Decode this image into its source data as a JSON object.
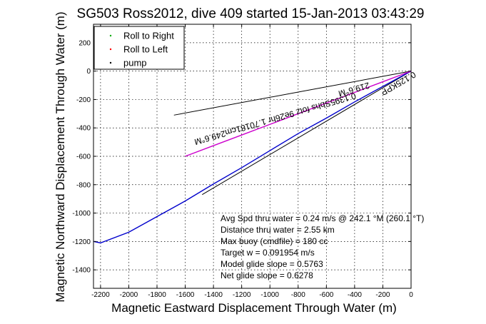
{
  "chart_data": {
    "type": "line",
    "title": "SG503 Ross2012, dive 409 started 15-Jan-2013 03:43:29",
    "xlabel": "Magnetic Eastward Displacement Through Water (m)",
    "ylabel": "Magnetic Northward Displacement Through Water (m)",
    "xlim": [
      -2250,
      0
    ],
    "ylim": [
      -1530,
      330
    ],
    "grid": true,
    "xticks": [
      -2200,
      -2000,
      -1800,
      -1600,
      -1400,
      -1200,
      -1000,
      -800,
      -600,
      -400,
      -200,
      0
    ],
    "yticks": [
      200,
      0,
      -200,
      -400,
      -600,
      -800,
      -1000,
      -1200,
      -1400
    ],
    "legend": {
      "placement": "top-left",
      "entries": [
        {
          "label": "Roll to Right",
          "color": "#00aa00",
          "marker": "dot"
        },
        {
          "label": "Roll to Left",
          "color": "#ff0000",
          "marker": "dot"
        },
        {
          "label": "pump",
          "color": "#000000",
          "marker": "dot"
        }
      ]
    },
    "series": [
      {
        "color": "#0000cc",
        "x": [
          0,
          -200,
          -400,
          -600,
          -800,
          -1000,
          -1200,
          -1400,
          -1600,
          -1800,
          -2000,
          -2200,
          -2250
        ],
        "y": [
          0,
          -108,
          -217,
          -331,
          -440,
          -560,
          -680,
          -795,
          -915,
          -1025,
          -1135,
          -1210,
          -1200
        ]
      },
      {
        "color": "#cc00cc",
        "x": [
          0,
          -200,
          -400,
          -600,
          -800,
          -1000,
          -1200,
          -1400,
          -1600
        ],
        "y": [
          0,
          -75,
          -150,
          -225,
          -300,
          -375,
          -450,
          -525,
          -600
        ]
      }
    ],
    "reference_lines": [
      {
        "color": "#000000",
        "x": [
          0,
          -1680
        ],
        "y": [
          0,
          -310
        ]
      },
      {
        "color": "#000000",
        "x": [
          0,
          -1480
        ],
        "y": [
          0,
          -870
        ]
      }
    ],
    "line_labels": [
      {
        "text": "249.6°M",
        "x": -1430,
        "y": -450,
        "angle": -16
      },
      {
        "text": "0.1395Sbhs fotz 9e26hr 1.70181cm",
        "x": -860,
        "y": -285,
        "angle": -16
      },
      {
        "text": "219.6°M",
        "x": -410,
        "y": -110,
        "angle": -16
      },
      {
        "text": "0.125KPP",
        "x": -100,
        "y": -70,
        "angle": -30
      }
    ],
    "annotations": [
      "Avg Spd thru water =  0.24 m/s @ 242.1    °M (260.1 °T)",
      "Distance thru water =  2.55 km",
      "Max buoy (cmdfile) = 180 cc",
      "Target w = 0.091954 m/s",
      "Model glide slope = 0.5763",
      "Net glide slope = 0.6278"
    ]
  }
}
